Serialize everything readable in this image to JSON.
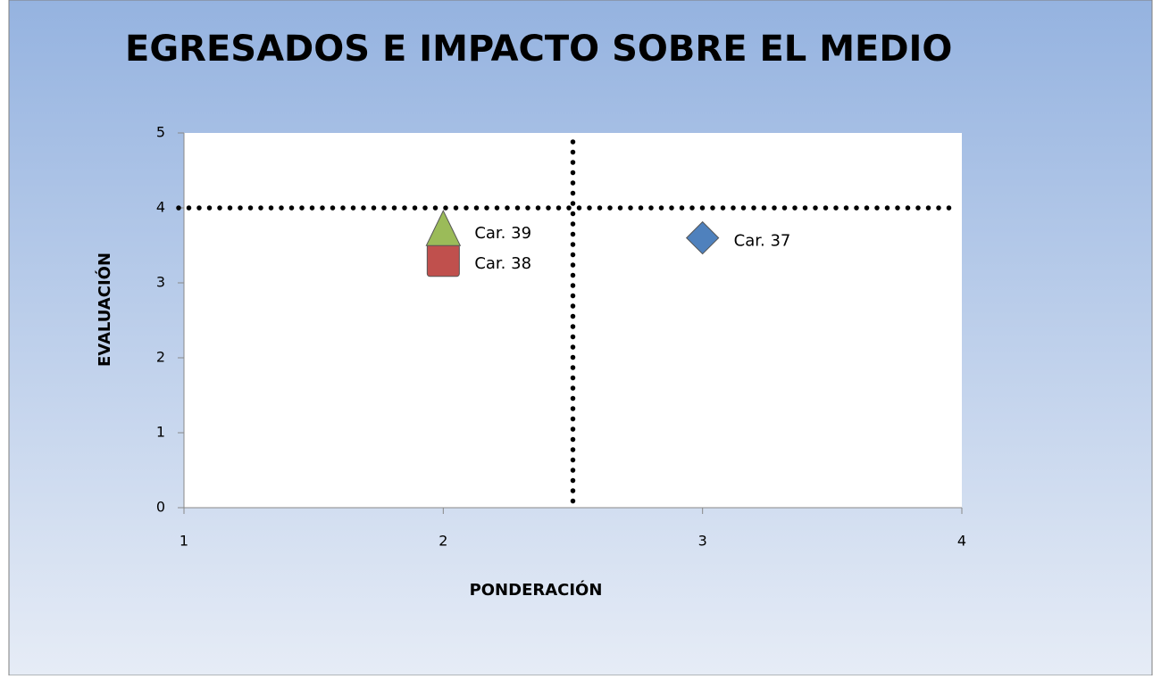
{
  "chart_data": {
    "type": "scatter",
    "title": "EGRESADOS E IMPACTO SOBRE EL MEDIO",
    "xlabel": "PONDERACIÓN",
    "ylabel": "EVALUACIÓN",
    "xlim": [
      1,
      4
    ],
    "xticks": [
      1,
      2,
      3,
      4
    ],
    "ylim": [
      0,
      5
    ],
    "yticks": [
      0,
      1,
      2,
      3,
      4,
      5
    ],
    "reference_lines": {
      "x": 2.5,
      "y": 4
    },
    "series": [
      {
        "name": "Car. 37",
        "color": "#4f81bd",
        "marker": "diamond",
        "x": [
          3
        ],
        "values": [
          3.6
        ]
      },
      {
        "name": "Car. 38",
        "color": "#c0504d",
        "marker": "square",
        "x": [
          2
        ],
        "values": [
          3.3
        ]
      },
      {
        "name": "Car. 39",
        "color": "#9bbb59",
        "marker": "triangle",
        "x": [
          2
        ],
        "values": [
          3.7
        ]
      }
    ]
  }
}
